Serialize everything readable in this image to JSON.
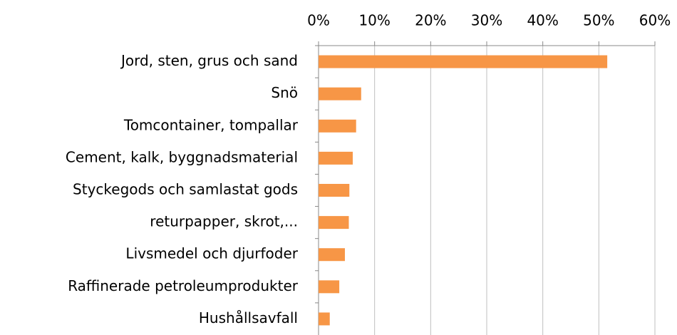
{
  "chart_data": {
    "type": "barh",
    "categories": [
      "Jord, sten, grus och sand",
      "Snö",
      "Tomcontainer, tompallar",
      "Cement, kalk, byggnadsmaterial",
      "Styckegods och samlastat gods",
      "returpapper, skrot,...",
      "Livsmedel och djurfoder",
      "Raffinerade petroleumprodukter",
      "Hushållsavfall"
    ],
    "values": [
      51.5,
      7.6,
      6.7,
      6.1,
      5.5,
      5.4,
      4.7,
      3.7,
      2.0
    ],
    "color": "#f79646",
    "xlim": [
      0,
      60
    ],
    "xticks": [
      {
        "value": 0,
        "label": "0%"
      },
      {
        "value": 10,
        "label": "10%"
      },
      {
        "value": 20,
        "label": "20%"
      },
      {
        "value": 30,
        "label": "30%"
      },
      {
        "value": 40,
        "label": "40%"
      },
      {
        "value": 50,
        "label": "50%"
      },
      {
        "value": 60,
        "label": "60%"
      }
    ],
    "grid": true
  }
}
